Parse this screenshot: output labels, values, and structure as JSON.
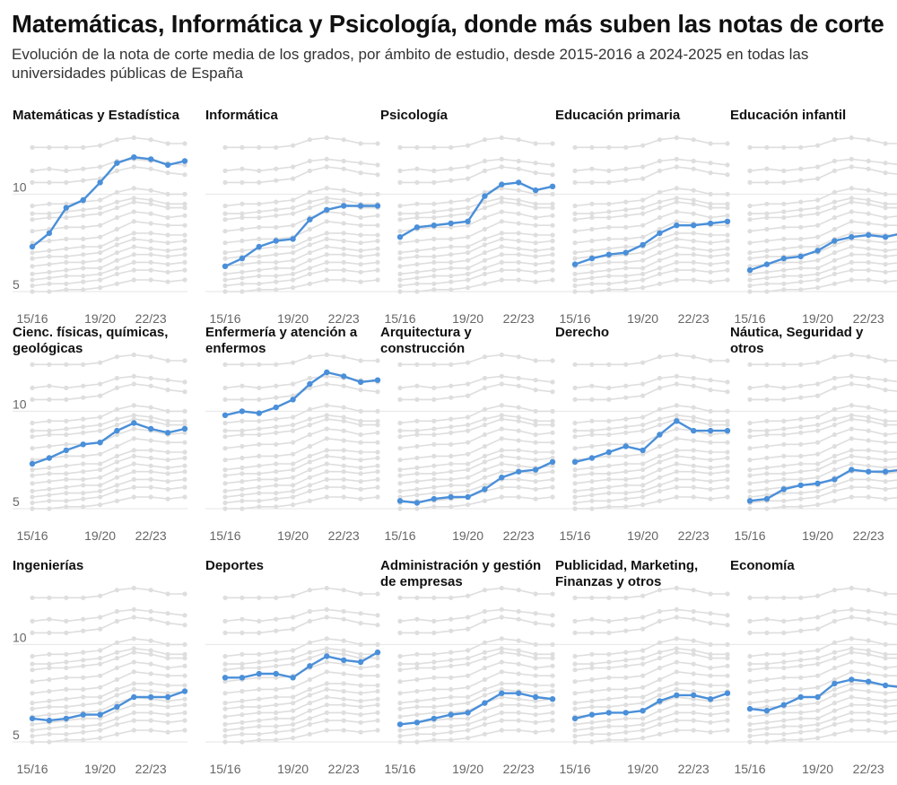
{
  "title": "Matemáticas, Informática y Psicología, donde más suben las notas de corte",
  "subtitle": "Evolución de la nota de corte media de los grados, por ámbito de estudio, desde 2015-2016 a 2024-2025 en todas las universidades públicas de España",
  "colors": {
    "highlight": "#4a8fd9",
    "background_series": "#dedede",
    "gridline": "#e6e6e6",
    "tick_text": "#666666"
  },
  "chart_data": {
    "type": "line",
    "layout": "small-multiples",
    "x": [
      "15/16",
      "16/17",
      "17/18",
      "18/19",
      "19/20",
      "20/21",
      "21/22",
      "22/23",
      "23/24",
      "24/25"
    ],
    "x_tick_labels": [
      "15/16",
      "19/20",
      "22/23"
    ],
    "y_ticks": [
      5,
      10
    ],
    "ylim": [
      4.4,
      12.6
    ],
    "grid": "horizontal",
    "series": [
      {
        "name": "Matemáticas y Estadística",
        "values": [
          7.3,
          8.0,
          9.3,
          9.7,
          10.6,
          11.6,
          11.9,
          11.8,
          11.5,
          11.7
        ]
      },
      {
        "name": "Informática",
        "values": [
          6.3,
          6.7,
          7.3,
          7.6,
          7.7,
          8.7,
          9.2,
          9.4,
          9.4,
          9.4
        ]
      },
      {
        "name": "Psicología",
        "values": [
          7.8,
          8.3,
          8.4,
          8.5,
          8.6,
          9.9,
          10.5,
          10.6,
          10.2,
          10.4
        ]
      },
      {
        "name": "Educación primaria",
        "values": [
          6.4,
          6.7,
          6.9,
          7.0,
          7.4,
          8.0,
          8.4,
          8.4,
          8.5,
          8.6
        ]
      },
      {
        "name": "Educación infantil",
        "values": [
          6.1,
          6.4,
          6.7,
          6.8,
          7.1,
          7.6,
          7.8,
          7.9,
          7.8,
          8.0
        ]
      },
      {
        "name": "Cienc. físicas, químicas, geológicas",
        "values": [
          7.3,
          7.6,
          8.0,
          8.3,
          8.4,
          9.0,
          9.4,
          9.1,
          8.9,
          9.1
        ]
      },
      {
        "name": "Enfermería y atención a enfermos",
        "values": [
          9.8,
          10.0,
          9.9,
          10.2,
          10.6,
          11.4,
          12.0,
          11.8,
          11.5,
          11.6
        ]
      },
      {
        "name": "Arquitectura y construcción",
        "values": [
          5.4,
          5.3,
          5.5,
          5.6,
          5.6,
          6.0,
          6.6,
          6.9,
          7.0,
          7.4
        ]
      },
      {
        "name": "Derecho",
        "values": [
          7.4,
          7.6,
          7.9,
          8.2,
          8.0,
          8.8,
          9.5,
          9.0,
          9.0,
          9.0
        ]
      },
      {
        "name": "Náutica, Seguridad y otros",
        "values": [
          5.4,
          5.5,
          6.0,
          6.2,
          6.3,
          6.5,
          7.0,
          6.9,
          6.9,
          7.0
        ]
      },
      {
        "name": "Ingenierías",
        "values": [
          6.2,
          6.1,
          6.2,
          6.4,
          6.4,
          6.8,
          7.3,
          7.3,
          7.3,
          7.6
        ]
      },
      {
        "name": "Deportes",
        "values": [
          8.3,
          8.3,
          8.5,
          8.5,
          8.3,
          8.9,
          9.4,
          9.2,
          9.1,
          9.6
        ]
      },
      {
        "name": "Administración y gestión de empresas",
        "values": [
          5.9,
          6.0,
          6.2,
          6.4,
          6.5,
          7.0,
          7.5,
          7.5,
          7.3,
          7.2
        ]
      },
      {
        "name": "Publicidad, Marketing, Finanzas y otros",
        "values": [
          6.2,
          6.4,
          6.5,
          6.5,
          6.6,
          7.1,
          7.4,
          7.4,
          7.2,
          7.5
        ]
      },
      {
        "name": "Economía",
        "values": [
          6.7,
          6.6,
          6.9,
          7.3,
          7.3,
          8.0,
          8.2,
          8.1,
          7.9,
          7.8
        ]
      }
    ],
    "context_series": [
      [
        12.4,
        12.4,
        12.4,
        12.4,
        12.5,
        12.8,
        12.9,
        12.8,
        12.6,
        12.6
      ],
      [
        11.2,
        11.3,
        11.2,
        11.3,
        11.4,
        11.7,
        11.8,
        11.7,
        11.6,
        11.5
      ],
      [
        10.6,
        10.6,
        10.6,
        10.7,
        10.8,
        11.2,
        11.4,
        11.3,
        11.1,
        11.0
      ],
      [
        9.4,
        9.5,
        9.5,
        9.6,
        9.7,
        10.1,
        10.3,
        10.2,
        10.0,
        10.0
      ],
      [
        9.0,
        9.0,
        9.1,
        9.2,
        9.3,
        9.6,
        9.8,
        9.7,
        9.5,
        9.5
      ],
      [
        8.7,
        8.8,
        8.8,
        8.9,
        9.0,
        9.3,
        9.6,
        9.5,
        9.3,
        9.3
      ],
      [
        8.1,
        8.2,
        8.3,
        8.3,
        8.4,
        8.8,
        9.1,
        9.0,
        8.8,
        8.9
      ],
      [
        7.5,
        7.6,
        7.7,
        7.7,
        7.8,
        8.2,
        8.6,
        8.5,
        8.4,
        8.4
      ],
      [
        7.0,
        7.1,
        7.2,
        7.3,
        7.3,
        7.7,
        8.0,
        8.0,
        7.9,
        7.9
      ],
      [
        6.7,
        6.8,
        6.8,
        6.9,
        7.0,
        7.4,
        7.7,
        7.6,
        7.5,
        7.6
      ],
      [
        6.3,
        6.4,
        6.5,
        6.5,
        6.6,
        7.0,
        7.3,
        7.2,
        7.1,
        7.2
      ],
      [
        5.9,
        6.0,
        6.1,
        6.2,
        6.2,
        6.6,
        6.9,
        6.9,
        6.8,
        6.9
      ],
      [
        5.6,
        5.7,
        5.8,
        5.8,
        5.9,
        6.2,
        6.5,
        6.5,
        6.4,
        6.5
      ],
      [
        5.3,
        5.4,
        5.4,
        5.5,
        5.6,
        5.9,
        6.1,
        6.1,
        6.0,
        6.1
      ],
      [
        5.0,
        5.0,
        5.1,
        5.1,
        5.2,
        5.4,
        5.6,
        5.6,
        5.5,
        5.6
      ]
    ]
  }
}
